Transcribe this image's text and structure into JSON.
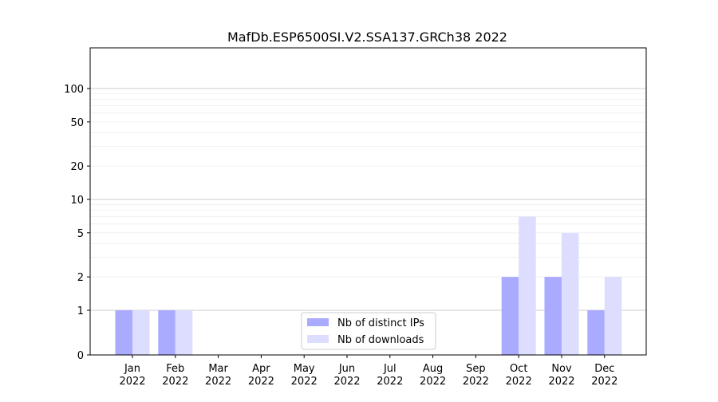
{
  "chart_data": {
    "type": "bar",
    "title": "MafDb.ESP6500SI.V2.SSA137.GRCh38 2022",
    "xlabel": "",
    "ylabel": "",
    "y_scale": "symlog",
    "ylim": [
      0,
      120
    ],
    "y_ticks": [
      0,
      1,
      2,
      5,
      10,
      20,
      50,
      100
    ],
    "categories": [
      "Jan\n2022",
      "Feb\n2022",
      "Mar\n2022",
      "Apr\n2022",
      "May\n2022",
      "Jun\n2022",
      "Jul\n2022",
      "Aug\n2022",
      "Sep\n2022",
      "Oct\n2022",
      "Nov\n2022",
      "Dec\n2022"
    ],
    "series": [
      {
        "name": "Nb of distinct IPs",
        "color": "#aaaaff",
        "values": [
          1,
          1,
          0,
          0,
          0,
          0,
          0,
          0,
          0,
          2,
          2,
          1
        ]
      },
      {
        "name": "Nb of downloads",
        "color": "#ddddff",
        "values": [
          1,
          1,
          0,
          0,
          0,
          0,
          0,
          0,
          0,
          7,
          5,
          2
        ]
      }
    ],
    "legend_position": "bottom-center",
    "grid": true
  }
}
